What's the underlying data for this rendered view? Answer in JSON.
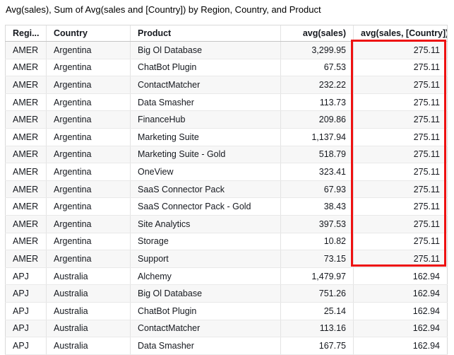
{
  "title": "Avg(sales), Sum of Avg(sales and [Country]) by Region, Country, and Product",
  "chart_data": {
    "type": "table",
    "title": "Avg(sales), Sum of Avg(sales and [Country]) by Region, Country, and Product",
    "columns": [
      "Regi...",
      "Country",
      "Product",
      "avg(sales)",
      "avg(sales, [Country])"
    ],
    "rows": [
      [
        "AMER",
        "Argentina",
        "Big Ol Database",
        "3,299.95",
        "275.11"
      ],
      [
        "AMER",
        "Argentina",
        "ChatBot Plugin",
        "67.53",
        "275.11"
      ],
      [
        "AMER",
        "Argentina",
        "ContactMatcher",
        "232.22",
        "275.11"
      ],
      [
        "AMER",
        "Argentina",
        "Data Smasher",
        "113.73",
        "275.11"
      ],
      [
        "AMER",
        "Argentina",
        "FinanceHub",
        "209.86",
        "275.11"
      ],
      [
        "AMER",
        "Argentina",
        "Marketing Suite",
        "1,137.94",
        "275.11"
      ],
      [
        "AMER",
        "Argentina",
        "Marketing Suite - Gold",
        "518.79",
        "275.11"
      ],
      [
        "AMER",
        "Argentina",
        "OneView",
        "323.41",
        "275.11"
      ],
      [
        "AMER",
        "Argentina",
        "SaaS Connector Pack",
        "67.93",
        "275.11"
      ],
      [
        "AMER",
        "Argentina",
        "SaaS Connector Pack - Gold",
        "38.43",
        "275.11"
      ],
      [
        "AMER",
        "Argentina",
        "Site Analytics",
        "397.53",
        "275.11"
      ],
      [
        "AMER",
        "Argentina",
        "Storage",
        "10.82",
        "275.11"
      ],
      [
        "AMER",
        "Argentina",
        "Support",
        "73.15",
        "275.11"
      ],
      [
        "APJ",
        "Australia",
        "Alchemy",
        "1,479.97",
        "162.94"
      ],
      [
        "APJ",
        "Australia",
        "Big Ol Database",
        "751.26",
        "162.94"
      ],
      [
        "APJ",
        "Australia",
        "ChatBot Plugin",
        "25.14",
        "162.94"
      ],
      [
        "APJ",
        "Australia",
        "ContactMatcher",
        "113.16",
        "162.94"
      ],
      [
        "APJ",
        "Australia",
        "Data Smasher",
        "167.75",
        "162.94"
      ]
    ],
    "annotation": {
      "kind": "red-highlight-box",
      "description": "Red rectangle outlining the avg(sales, [Country]) column cells for all 13 AMER/Argentina rows, each valued 275.11",
      "color": "#ee1111"
    },
    "layout_hints": {
      "striped_rows": "odd rows light gray",
      "numeric_columns_right_aligned": [
        "avg(sales)",
        "avg(sales, [Country])"
      ]
    }
  },
  "colors": {
    "stripe": "#f7f7f7",
    "row_border": "#e9e9e9",
    "column_border": "#e3e3e3",
    "header_border": "#c6c6c6",
    "highlight_red": "#ee1111",
    "text": "#16191f"
  }
}
